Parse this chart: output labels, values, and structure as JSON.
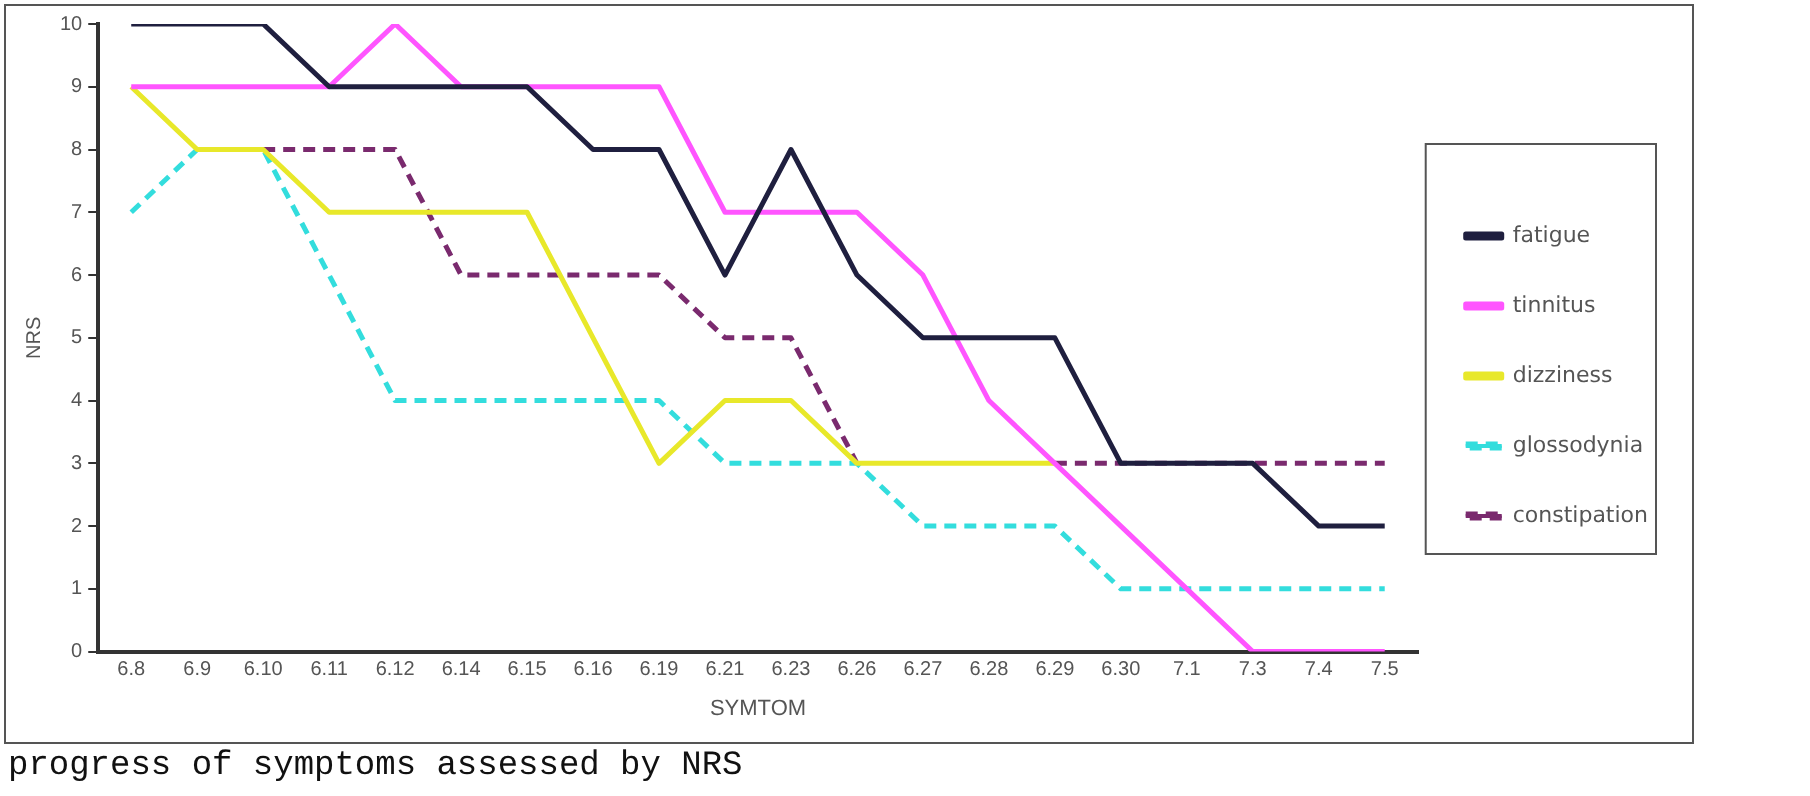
{
  "chart_data": {
    "type": "line",
    "xlabel": "SYMTOM",
    "ylabel": "NRS",
    "categories": [
      "6.8",
      "6.9",
      "6.10",
      "6.11",
      "6.12",
      "6.14",
      "6.15",
      "6.16",
      "6.19",
      "6.21",
      "6.23",
      "6.26",
      "6.27",
      "6.28",
      "6.29",
      "6.30",
      "7.1",
      "7.3",
      "7.4",
      "7.5"
    ],
    "series": [
      {
        "name": "fatigue",
        "color": "#1f1f3f",
        "line_style": "solid",
        "values": [
          10,
          10,
          10,
          9,
          9,
          9,
          9,
          8,
          8,
          6,
          8,
          6,
          5,
          5,
          5,
          3,
          3,
          3,
          2,
          2
        ]
      },
      {
        "name": "tinnitus",
        "color": "#ff55ff",
        "line_style": "solid",
        "values": [
          9,
          9,
          9,
          9,
          10,
          9,
          9,
          9,
          9,
          7,
          7,
          7,
          6,
          4,
          3,
          2,
          1,
          0,
          0,
          0
        ]
      },
      {
        "name": "dizziness",
        "color": "#e8e82a",
        "line_style": "solid",
        "values": [
          9,
          8,
          8,
          7,
          7,
          7,
          7,
          5,
          3,
          4,
          4,
          3,
          3,
          3,
          3,
          null,
          null,
          null,
          null,
          null
        ]
      },
      {
        "name": "glossodynia",
        "color": "#33dddd",
        "line_style": "dashed",
        "values": [
          7,
          8,
          8,
          6,
          4,
          4,
          4,
          4,
          4,
          3,
          3,
          3,
          2,
          2,
          2,
          1,
          1,
          1,
          1,
          1
        ]
      },
      {
        "name": "constipation",
        "color": "#7a2a6e",
        "line_style": "dashed",
        "values": [
          null,
          null,
          8,
          8,
          8,
          6,
          6,
          6,
          6,
          5,
          5,
          3,
          null,
          null,
          3,
          3,
          3,
          3,
          3,
          3
        ]
      }
    ],
    "ylim": [
      0,
      10
    ],
    "yticks": [
      0,
      1,
      2,
      3,
      4,
      5,
      6,
      7,
      8,
      9,
      10
    ],
    "grid": false,
    "legend": "right",
    "marker": "none",
    "annotations": [
      "progress of symptoms assessed by NRS"
    ]
  }
}
